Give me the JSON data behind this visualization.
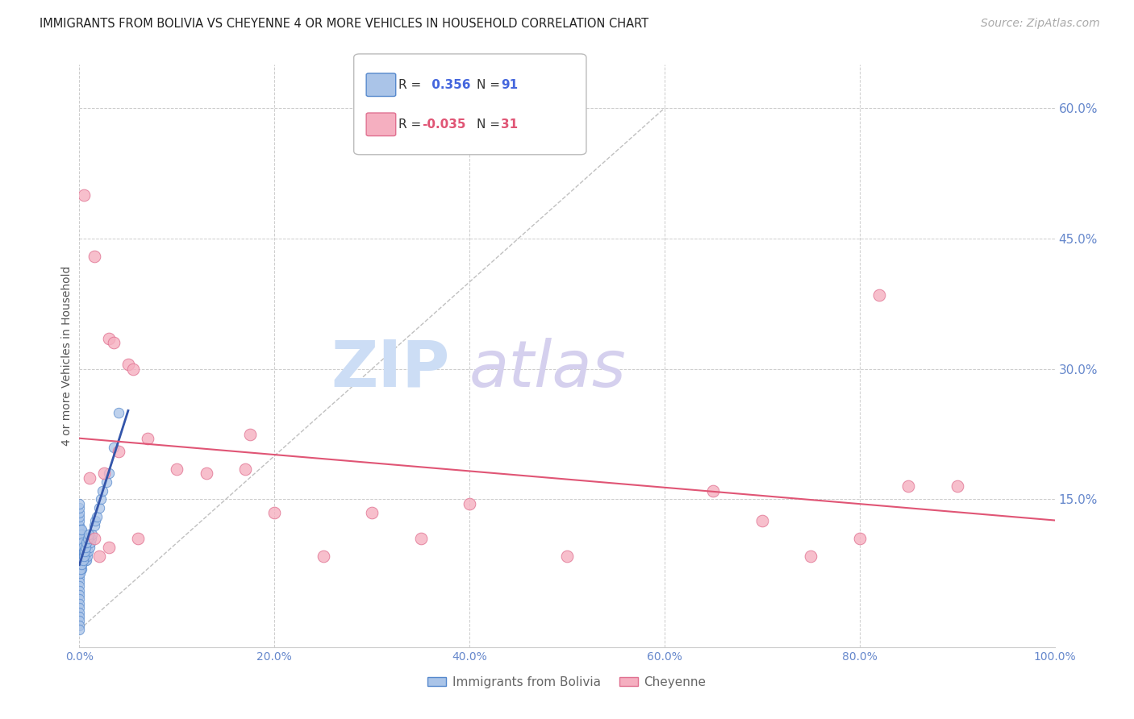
{
  "title": "IMMIGRANTS FROM BOLIVIA VS CHEYENNE 4 OR MORE VEHICLES IN HOUSEHOLD CORRELATION CHART",
  "source": "Source: ZipAtlas.com",
  "ylabel": "4 or more Vehicles in Household",
  "x_tick_labels": [
    "0.0%",
    "20.0%",
    "40.0%",
    "60.0%",
    "80.0%",
    "100.0%"
  ],
  "x_tick_values": [
    0,
    20,
    40,
    60,
    80,
    100
  ],
  "y_tick_labels_right": [
    "15.0%",
    "30.0%",
    "45.0%",
    "60.0%"
  ],
  "y_tick_values": [
    15,
    30,
    45,
    60
  ],
  "xlim": [
    0,
    100
  ],
  "ylim": [
    -2,
    65
  ],
  "legend_labels": [
    "Immigrants from Bolivia",
    "Cheyenne"
  ],
  "blue_R": "0.356",
  "blue_N": "91",
  "pink_R": "-0.035",
  "pink_N": "31",
  "blue_color": "#aac4e8",
  "pink_color": "#f5afc0",
  "blue_edge": "#5588cc",
  "pink_edge": "#e07090",
  "trend_blue_color": "#3355aa",
  "trend_pink_color": "#e05575",
  "diag_color": "#c0c0c0",
  "blue_x": [
    0.0,
    0.0,
    0.0,
    0.0,
    0.0,
    0.0,
    0.0,
    0.0,
    0.0,
    0.0,
    0.0,
    0.0,
    0.0,
    0.0,
    0.0,
    0.0,
    0.0,
    0.0,
    0.0,
    0.0,
    0.0,
    0.0,
    0.0,
    0.0,
    0.0,
    0.0,
    0.0,
    0.0,
    0.0,
    0.0,
    0.1,
    0.1,
    0.1,
    0.1,
    0.1,
    0.1,
    0.1,
    0.1,
    0.1,
    0.1,
    0.2,
    0.2,
    0.2,
    0.2,
    0.2,
    0.2,
    0.2,
    0.2,
    0.2,
    0.2,
    0.3,
    0.3,
    0.3,
    0.3,
    0.3,
    0.4,
    0.4,
    0.4,
    0.4,
    0.5,
    0.5,
    0.5,
    0.6,
    0.6,
    0.7,
    0.8,
    0.9,
    1.0,
    1.1,
    1.2,
    1.3,
    1.5,
    1.6,
    1.8,
    2.0,
    2.2,
    2.4,
    2.8,
    3.0,
    3.5,
    4.0,
    0.05,
    0.15,
    0.25,
    0.35,
    0.45,
    0.55,
    0.65,
    0.75,
    0.85,
    0.95
  ],
  "blue_y": [
    8.0,
    7.5,
    7.0,
    6.5,
    6.0,
    5.5,
    5.0,
    4.5,
    4.0,
    3.5,
    3.0,
    2.5,
    2.0,
    1.5,
    1.0,
    0.5,
    0.0,
    8.5,
    9.0,
    9.5,
    10.0,
    10.5,
    11.0,
    11.5,
    12.0,
    12.5,
    13.0,
    13.5,
    14.0,
    14.5,
    7.0,
    7.5,
    8.0,
    8.5,
    9.0,
    9.5,
    10.0,
    10.5,
    11.0,
    11.5,
    7.0,
    7.5,
    8.0,
    8.5,
    9.0,
    9.5,
    10.0,
    10.5,
    11.0,
    11.5,
    8.0,
    8.5,
    9.0,
    9.5,
    10.0,
    8.0,
    8.5,
    9.0,
    9.5,
    8.0,
    8.5,
    9.0,
    8.0,
    8.5,
    8.0,
    8.5,
    9.0,
    9.5,
    10.0,
    10.5,
    11.0,
    12.0,
    12.5,
    13.0,
    14.0,
    15.0,
    16.0,
    17.0,
    18.0,
    21.0,
    25.0,
    6.5,
    7.0,
    7.5,
    8.0,
    8.5,
    9.0,
    9.5,
    10.0,
    10.5,
    11.0
  ],
  "pink_x": [
    0.5,
    1.5,
    3.0,
    3.5,
    5.0,
    5.5,
    7.0,
    10.0,
    13.0,
    17.0,
    17.5,
    20.0,
    25.0,
    30.0,
    35.0,
    40.0,
    50.0,
    65.0,
    70.0,
    75.0,
    80.0,
    82.0,
    85.0,
    90.0,
    1.0,
    2.5,
    4.0,
    1.5,
    2.0,
    3.0,
    6.0
  ],
  "pink_y": [
    50.0,
    43.0,
    33.5,
    33.0,
    30.5,
    30.0,
    22.0,
    18.5,
    18.0,
    18.5,
    22.5,
    13.5,
    8.5,
    13.5,
    10.5,
    14.5,
    8.5,
    16.0,
    12.5,
    8.5,
    10.5,
    38.5,
    16.5,
    16.5,
    17.5,
    18.0,
    20.5,
    10.5,
    8.5,
    9.5,
    10.5
  ],
  "title_fontsize": 10.5,
  "axis_label_fontsize": 10,
  "tick_fontsize": 10,
  "source_fontsize": 10,
  "background_color": "#ffffff",
  "grid_color": "#cccccc",
  "marker_size": 80,
  "right_axis_color": "#6688cc",
  "watermark_zip_color": "#ccddf5",
  "watermark_atlas_color": "#d5d0ee"
}
